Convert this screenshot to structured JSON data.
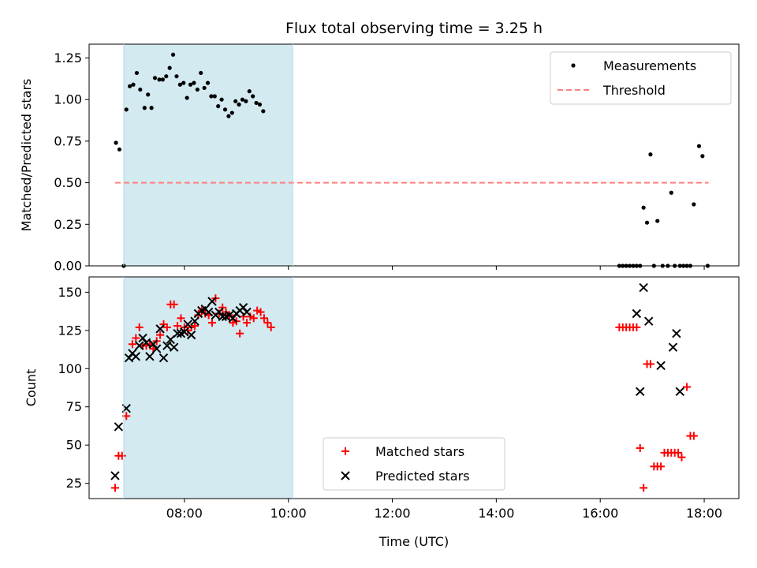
{
  "chart_data": [
    {
      "type": "scatter",
      "title": "Flux total observing time = 3.25 h",
      "ylabel": "Matched/Predicted stars",
      "xlim": [
        "06:10",
        "18:40"
      ],
      "ylim": [
        0,
        1.333
      ],
      "yticks": [
        "0.00",
        "0.25",
        "0.50",
        "0.75",
        "1.00",
        "1.25"
      ],
      "highlight": {
        "start": "06:50",
        "end": "10:05",
        "color": "#d3eaf0"
      },
      "legend": {
        "position": "top-right",
        "entries": [
          "Measurements",
          "Threshold"
        ]
      },
      "threshold": {
        "name": "Threshold",
        "value": 0.5,
        "x_start": "06:40",
        "x_end": "18:05",
        "color": "#ff7f7f"
      },
      "series": [
        {
          "name": "Measurements",
          "color": "#000000",
          "points": [
            [
              "06:41",
              0.74
            ],
            [
              "06:45",
              0.7
            ],
            [
              "06:50",
              0.0
            ],
            [
              "06:53",
              0.94
            ],
            [
              "06:57",
              1.08
            ],
            [
              "07:01",
              1.09
            ],
            [
              "07:05",
              1.16
            ],
            [
              "07:09",
              1.06
            ],
            [
              "07:14",
              0.95
            ],
            [
              "07:18",
              1.03
            ],
            [
              "07:22",
              0.95
            ],
            [
              "07:26",
              1.13
            ],
            [
              "07:31",
              1.12
            ],
            [
              "07:35",
              1.12
            ],
            [
              "07:39",
              1.14
            ],
            [
              "07:43",
              1.19
            ],
            [
              "07:47",
              1.27
            ],
            [
              "07:51",
              1.14
            ],
            [
              "07:55",
              1.09
            ],
            [
              "07:59",
              1.1
            ],
            [
              "08:03",
              1.01
            ],
            [
              "08:07",
              1.09
            ],
            [
              "08:11",
              1.1
            ],
            [
              "08:15",
              1.06
            ],
            [
              "08:19",
              1.16
            ],
            [
              "08:23",
              1.07
            ],
            [
              "08:27",
              1.1
            ],
            [
              "08:31",
              1.02
            ],
            [
              "08:35",
              1.02
            ],
            [
              "08:39",
              0.96
            ],
            [
              "08:43",
              1.0
            ],
            [
              "08:47",
              0.94
            ],
            [
              "08:51",
              0.9
            ],
            [
              "08:55",
              0.92
            ],
            [
              "08:59",
              0.99
            ],
            [
              "09:03",
              0.97
            ],
            [
              "09:07",
              1.0
            ],
            [
              "09:11",
              0.99
            ],
            [
              "09:15",
              1.05
            ],
            [
              "09:19",
              1.02
            ],
            [
              "09:23",
              0.98
            ],
            [
              "09:27",
              0.97
            ],
            [
              "09:31",
              0.93
            ],
            [
              "16:22",
              0.0
            ],
            [
              "16:26",
              0.0
            ],
            [
              "16:30",
              0.0
            ],
            [
              "16:34",
              0.0
            ],
            [
              "16:38",
              0.0
            ],
            [
              "16:42",
              0.0
            ],
            [
              "16:46",
              0.0
            ],
            [
              "16:50",
              0.35
            ],
            [
              "16:54",
              0.26
            ],
            [
              "16:58",
              0.67
            ],
            [
              "17:02",
              0.0
            ],
            [
              "17:06",
              0.27
            ],
            [
              "17:12",
              0.0
            ],
            [
              "17:18",
              0.0
            ],
            [
              "17:22",
              0.44
            ],
            [
              "17:26",
              0.0
            ],
            [
              "17:32",
              0.0
            ],
            [
              "17:36",
              0.0
            ],
            [
              "17:40",
              0.0
            ],
            [
              "17:44",
              0.0
            ],
            [
              "17:48",
              0.37
            ],
            [
              "17:54",
              0.72
            ],
            [
              "17:58",
              0.66
            ],
            [
              "18:04",
              0.0
            ]
          ]
        }
      ]
    },
    {
      "type": "scatter",
      "title": "",
      "xlabel": "Time (UTC)",
      "ylabel": "Count",
      "xlim": [
        "06:10",
        "18:40"
      ],
      "ylim": [
        15,
        160
      ],
      "yticks": [
        "25",
        "50",
        "75",
        "100",
        "125",
        "150"
      ],
      "xticks": [
        "08:00",
        "10:00",
        "12:00",
        "14:00",
        "16:00",
        "18:00"
      ],
      "highlight": {
        "start": "06:50",
        "end": "10:05",
        "color": "#d3eaf0"
      },
      "legend": {
        "position": "bottom-center",
        "entries": [
          "Matched stars",
          "Predicted stars"
        ]
      },
      "series": [
        {
          "name": "Matched stars",
          "color": "#ff0000",
          "marker": "plus",
          "points": [
            [
              "06:40",
              22
            ],
            [
              "06:44",
              43
            ],
            [
              "06:48",
              43
            ],
            [
              "06:53",
              69
            ],
            [
              "07:00",
              116
            ],
            [
              "07:04",
              120
            ],
            [
              "07:08",
              127
            ],
            [
              "07:12",
              115
            ],
            [
              "07:16",
              115
            ],
            [
              "07:20",
              116
            ],
            [
              "07:24",
              113
            ],
            [
              "07:28",
              118
            ],
            [
              "07:32",
              122
            ],
            [
              "07:36",
              129
            ],
            [
              "07:40",
              127
            ],
            [
              "07:44",
              142
            ],
            [
              "07:48",
              142
            ],
            [
              "07:52",
              128
            ],
            [
              "07:56",
              133
            ],
            [
              "08:00",
              127
            ],
            [
              "08:04",
              125
            ],
            [
              "08:08",
              127
            ],
            [
              "08:12",
              128
            ],
            [
              "08:16",
              135
            ],
            [
              "08:20",
              138
            ],
            [
              "08:24",
              136
            ],
            [
              "08:28",
              135
            ],
            [
              "08:32",
              130
            ],
            [
              "08:36",
              146
            ],
            [
              "08:40",
              136
            ],
            [
              "08:44",
              140
            ],
            [
              "08:48",
              137
            ],
            [
              "08:52",
              135
            ],
            [
              "08:56",
              130
            ],
            [
              "09:00",
              131
            ],
            [
              "09:04",
              123
            ],
            [
              "09:08",
              134
            ],
            [
              "09:12",
              130
            ],
            [
              "09:16",
              134
            ],
            [
              "09:20",
              133
            ],
            [
              "09:24",
              138
            ],
            [
              "09:28",
              137
            ],
            [
              "09:32",
              133
            ],
            [
              "09:36",
              130
            ],
            [
              "09:40",
              127
            ],
            [
              "16:22",
              127
            ],
            [
              "16:26",
              127
            ],
            [
              "16:30",
              127
            ],
            [
              "16:34",
              127
            ],
            [
              "16:38",
              127
            ],
            [
              "16:42",
              127
            ],
            [
              "16:46",
              48
            ],
            [
              "16:50",
              22
            ],
            [
              "16:54",
              103
            ],
            [
              "16:58",
              103
            ],
            [
              "17:02",
              36
            ],
            [
              "17:06",
              36
            ],
            [
              "17:10",
              36
            ],
            [
              "17:14",
              45
            ],
            [
              "17:18",
              45
            ],
            [
              "17:22",
              45
            ],
            [
              "17:26",
              45
            ],
            [
              "17:30",
              45
            ],
            [
              "17:34",
              42
            ],
            [
              "17:40",
              88
            ],
            [
              "17:44",
              56
            ],
            [
              "17:48",
              56
            ]
          ]
        },
        {
          "name": "Predicted stars",
          "color": "#000000",
          "marker": "x",
          "points": [
            [
              "06:40",
              30
            ],
            [
              "06:44",
              62
            ],
            [
              "06:53",
              74
            ],
            [
              "06:56",
              107
            ],
            [
              "07:00",
              110
            ],
            [
              "07:04",
              108
            ],
            [
              "07:08",
              115
            ],
            [
              "07:12",
              120
            ],
            [
              "07:16",
              117
            ],
            [
              "07:20",
              108
            ],
            [
              "07:24",
              116
            ],
            [
              "07:28",
              113
            ],
            [
              "07:32",
              126
            ],
            [
              "07:36",
              107
            ],
            [
              "07:40",
              115
            ],
            [
              "07:44",
              119
            ],
            [
              "07:48",
              114
            ],
            [
              "07:52",
              123
            ],
            [
              "07:56",
              123
            ],
            [
              "08:00",
              124
            ],
            [
              "08:04",
              129
            ],
            [
              "08:08",
              122
            ],
            [
              "08:12",
              131
            ],
            [
              "08:16",
              136
            ],
            [
              "08:20",
              138
            ],
            [
              "08:24",
              139
            ],
            [
              "08:28",
              137
            ],
            [
              "08:32",
              144
            ],
            [
              "08:36",
              135
            ],
            [
              "08:40",
              137
            ],
            [
              "08:44",
              134
            ],
            [
              "08:48",
              134
            ],
            [
              "08:52",
              135
            ],
            [
              "08:56",
              133
            ],
            [
              "09:00",
              136
            ],
            [
              "09:04",
              138
            ],
            [
              "09:08",
              140
            ],
            [
              "09:12",
              137
            ],
            [
              "16:42",
              136
            ],
            [
              "16:46",
              85
            ],
            [
              "16:50",
              153
            ],
            [
              "16:56",
              131
            ],
            [
              "17:10",
              102
            ],
            [
              "17:24",
              114
            ],
            [
              "17:28",
              123
            ],
            [
              "17:32",
              85
            ]
          ]
        }
      ]
    }
  ]
}
